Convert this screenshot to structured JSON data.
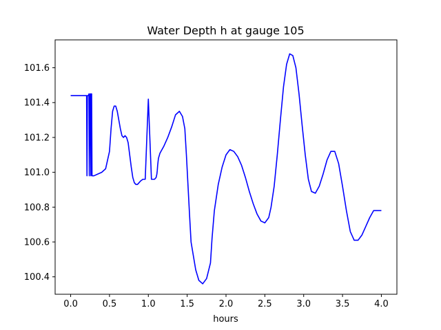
{
  "chart_data": {
    "type": "line",
    "title": "Water Depth h at gauge 105",
    "xlabel": "hours",
    "ylabel": "",
    "xlim": [
      -0.2,
      4.2
    ],
    "ylim": [
      100.3,
      101.76
    ],
    "xticks": [
      0.0,
      0.5,
      1.0,
      1.5,
      2.0,
      2.5,
      3.0,
      3.5,
      4.0
    ],
    "xtick_labels": [
      "0.0",
      "0.5",
      "1.0",
      "1.5",
      "2.0",
      "2.5",
      "3.0",
      "3.5",
      "4.0"
    ],
    "yticks": [
      100.4,
      100.6,
      100.8,
      101.0,
      101.2,
      101.4,
      101.6
    ],
    "ytick_labels": [
      "100.4",
      "100.6",
      "100.8",
      "101.0",
      "101.2",
      "101.4",
      "101.6"
    ],
    "grid": false,
    "legend": "none",
    "series": [
      {
        "color": "#0000ff",
        "x": [
          0.0,
          0.2,
          0.205,
          0.21,
          0.215,
          0.22,
          0.228,
          0.235,
          0.24,
          0.25,
          0.255,
          0.26,
          0.265,
          0.27,
          0.275,
          0.28,
          0.285,
          0.3,
          0.35,
          0.4,
          0.45,
          0.5,
          0.52,
          0.54,
          0.56,
          0.58,
          0.6,
          0.62,
          0.64,
          0.66,
          0.68,
          0.7,
          0.72,
          0.74,
          0.76,
          0.78,
          0.8,
          0.82,
          0.84,
          0.86,
          0.88,
          0.9,
          0.93,
          0.96,
          1.0,
          1.04,
          1.08,
          1.1,
          1.105,
          1.11,
          1.115,
          1.12,
          1.13,
          1.15,
          1.2,
          1.25,
          1.3,
          1.35,
          1.4,
          1.44,
          1.47,
          1.49,
          1.51,
          1.53,
          1.55,
          1.58,
          1.61,
          1.65,
          1.7,
          1.75,
          1.8,
          1.82,
          1.85,
          1.9,
          1.95,
          2.0,
          2.05,
          2.1,
          2.15,
          2.2,
          2.25,
          2.3,
          2.35,
          2.4,
          2.45,
          2.5,
          2.55,
          2.58,
          2.62,
          2.66,
          2.7,
          2.74,
          2.78,
          2.82,
          2.86,
          2.9,
          2.94,
          2.98,
          3.02,
          3.06,
          3.1,
          3.15,
          3.2,
          3.25,
          3.3,
          3.35,
          3.4,
          3.45,
          3.5,
          3.55,
          3.6,
          3.65,
          3.7,
          3.75,
          3.8,
          3.85,
          3.9,
          3.95,
          4.0
        ],
        "y": [
          101.44,
          101.44,
          101.44,
          100.98,
          101.44,
          101.44,
          101.44,
          101.45,
          100.98,
          101.45,
          101.45,
          100.98,
          101.45,
          101.45,
          100.98,
          100.98,
          100.98,
          100.98,
          100.99,
          101.0,
          101.02,
          101.12,
          101.25,
          101.35,
          101.38,
          101.38,
          101.35,
          101.3,
          101.25,
          101.21,
          101.2,
          101.21,
          101.2,
          101.17,
          101.1,
          101.03,
          100.97,
          100.94,
          100.93,
          100.93,
          100.94,
          100.95,
          100.96,
          100.96,
          101.42,
          100.96,
          100.96,
          100.97,
          100.98,
          100.99,
          101.01,
          101.04,
          101.08,
          101.11,
          101.15,
          101.2,
          101.26,
          101.33,
          101.35,
          101.32,
          101.25,
          101.1,
          100.93,
          100.76,
          100.6,
          100.52,
          100.44,
          100.38,
          100.36,
          100.39,
          100.48,
          100.62,
          100.78,
          100.93,
          101.03,
          101.1,
          101.13,
          101.12,
          101.09,
          101.04,
          100.97,
          100.89,
          100.82,
          100.76,
          100.72,
          100.71,
          100.74,
          100.8,
          100.92,
          101.1,
          101.3,
          101.49,
          101.62,
          101.68,
          101.67,
          101.6,
          101.45,
          101.27,
          101.1,
          100.96,
          100.89,
          100.88,
          100.92,
          100.99,
          101.07,
          101.12,
          101.12,
          101.05,
          100.92,
          100.78,
          100.66,
          100.61,
          100.61,
          100.64,
          100.69,
          100.74,
          100.78,
          100.78,
          100.78
        ]
      }
    ]
  }
}
